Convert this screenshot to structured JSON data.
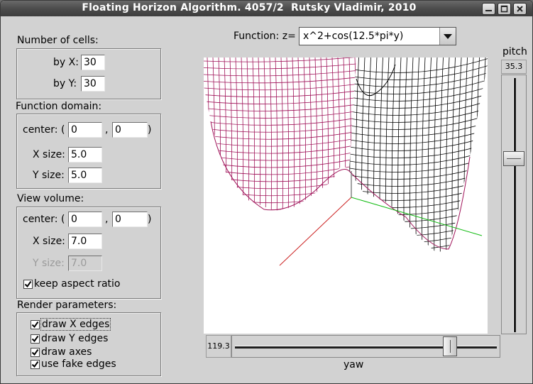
{
  "window": {
    "title": "Floating Horizon Algorithm. 4057/2  Rutsky Vladimir, 2010"
  },
  "cells": {
    "heading": "Number of cells:",
    "x_label": "by X:",
    "x_value": "30",
    "y_label": "by Y:",
    "y_value": "30"
  },
  "domain": {
    "heading": "Function domain:",
    "center_label": "center: (",
    "center_x": "0",
    "sep": ",",
    "center_y": "0",
    "close": ")",
    "xsize_label": "X size:",
    "xsize": "5.0",
    "ysize_label": "Y size:",
    "ysize": "5.0"
  },
  "view": {
    "heading": "View volume:",
    "center_label": "center: (",
    "center_x": "0",
    "sep": ",",
    "center_y": "0",
    "close": ")",
    "xsize_label": "X size:",
    "xsize": "7.0",
    "ysize_label": "Y size:",
    "ysize": "7.0",
    "keep_aspect_label": "keep aspect ratio",
    "keep_aspect_checked": true
  },
  "render": {
    "heading": "Render parameters:",
    "items": [
      {
        "label": "draw X edges",
        "checked": true
      },
      {
        "label": "draw Y edges",
        "checked": true
      },
      {
        "label": "draw axes",
        "checked": true
      },
      {
        "label": "use fake edges",
        "checked": true
      }
    ]
  },
  "function": {
    "label": "Function: z=",
    "value": "x^2+cos(12.5*pi*y)",
    "arrow_icon": "dropdown-arrow-icon"
  },
  "pitch": {
    "label": "pitch",
    "value": "35.3"
  },
  "yaw": {
    "label": "yaw",
    "value": "119.3"
  },
  "colors": {
    "surface_front": "#a0145a",
    "surface_back": "#000000",
    "axis_x": "#cc2222",
    "axis_y": "#11bb11",
    "axis_z": "#444444",
    "title_bar": "#4c4c4c",
    "panel": "#d2d2d2"
  }
}
